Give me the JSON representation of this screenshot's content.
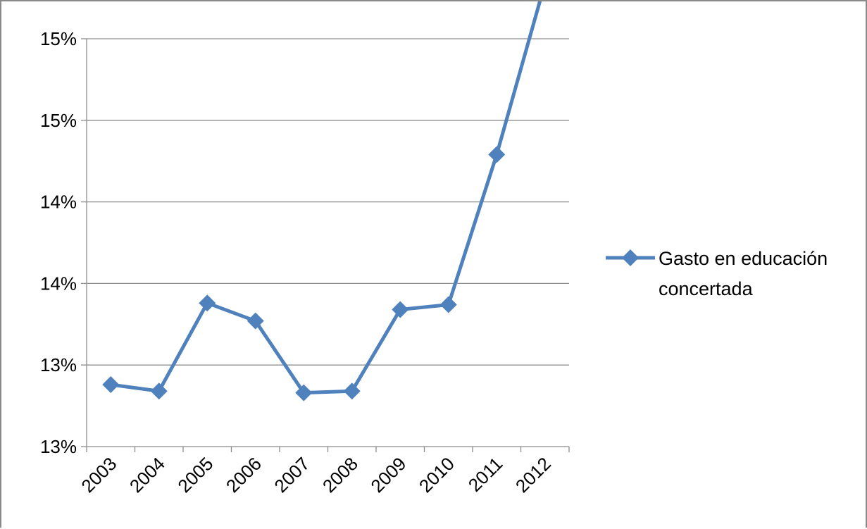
{
  "chart_data": {
    "type": "line",
    "categories": [
      "2003",
      "2004",
      "2005",
      "2006",
      "2007",
      "2008",
      "2009",
      "2010",
      "2011",
      "2012"
    ],
    "series": [
      {
        "name": "Gasto en educación concertada",
        "values": [
          12.88,
          12.84,
          13.38,
          13.27,
          12.83,
          12.84,
          13.34,
          13.37,
          14.29,
          15.34
        ],
        "color": "#4F81BD",
        "marker": "diamond"
      }
    ],
    "ylim": [
      12.5,
      15.0
    ],
    "yticks": [
      12.5,
      13.0,
      13.5,
      14.0,
      14.5,
      15.0
    ],
    "ytick_labels": [
      "13%",
      "13%",
      "14%",
      "14%",
      "15%",
      "15%"
    ],
    "legend_lines": [
      "Gasto en educación",
      "concertada"
    ],
    "legend_position": "right",
    "grid": true,
    "gridline_color": "#8c8c8c",
    "title": "",
    "xlabel": "",
    "ylabel": ""
  }
}
